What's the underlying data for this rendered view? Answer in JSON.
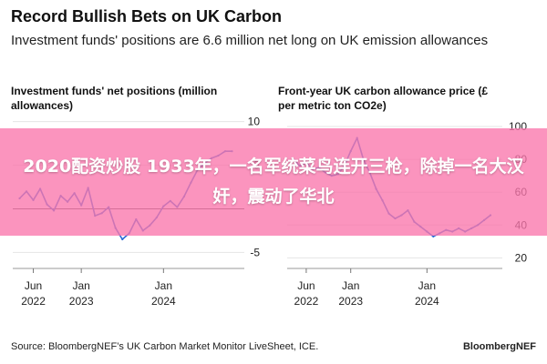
{
  "header": {
    "title": "Record Bullish Bets on UK Carbon",
    "subtitle": "Investment funds' positions are 6.6 million net long on UK emission allowances"
  },
  "footer": {
    "source": "Source: BloombergNEF’s UK Carbon Market Monitor LiveSheet, ICE.",
    "brand": "BloombergNEF"
  },
  "overlay": {
    "text": "2020配资炒股 1933年，一名军统菜鸟连开三枪，除掉一名大汉奸，震动了华北"
  },
  "colors": {
    "line": "#2b6cd6",
    "zero_line": "#555555",
    "grid": "#e4e4e4",
    "overlay": "#fa76ac"
  },
  "chart_data": [
    {
      "type": "line",
      "title": "Investment funds' net positions (million allowances)",
      "xlabel": "",
      "ylabel": "",
      "x_ticks": [
        {
          "line1": "Jun",
          "line2": "2022",
          "x": "2022-06"
        },
        {
          "line1": "Jan",
          "line2": "2023",
          "x": "2023-01"
        },
        {
          "line1": "Jan",
          "line2": "2024",
          "x": "2024-01"
        }
      ],
      "yticks": [
        10,
        5,
        -5
      ],
      "ylim": [
        -6,
        11
      ],
      "xlim": [
        "2022-03",
        "2024-12"
      ],
      "zero_line": true,
      "series": [
        {
          "x": [
            "2022-04",
            "2022-05",
            "2022-06",
            "2022-07",
            "2022-08",
            "2022-09",
            "2022-10",
            "2022-11",
            "2022-12",
            "2023-01",
            "2023-02",
            "2023-03",
            "2023-04",
            "2023-05",
            "2023-06",
            "2023-07",
            "2023-08",
            "2023-09",
            "2023-10",
            "2023-11",
            "2023-12",
            "2024-01",
            "2024-02",
            "2024-03",
            "2024-04",
            "2024-05",
            "2024-06",
            "2024-07",
            "2024-08",
            "2024-09",
            "2024-10",
            "2024-11"
          ],
          "y": [
            1.2,
            2.0,
            1.0,
            2.3,
            0.5,
            -0.2,
            1.5,
            0.8,
            1.8,
            0.4,
            2.4,
            -0.8,
            -0.5,
            0.2,
            -2.2,
            -3.5,
            -2.8,
            -1.2,
            -2.5,
            -1.9,
            -1.0,
            0.3,
            0.9,
            0.2,
            1.4,
            3.0,
            4.5,
            5.2,
            5.8,
            6.1,
            6.6,
            6.6
          ]
        }
      ]
    },
    {
      "type": "line",
      "title": "Front-year UK carbon allowance price (£ per metric ton CO2e)",
      "xlabel": "",
      "ylabel": "",
      "x_ticks": [
        {
          "line1": "Jun",
          "line2": "2022",
          "x": "2022-06"
        },
        {
          "line1": "Jan",
          "line2": "2023",
          "x": "2023-01"
        },
        {
          "line1": "Jan",
          "line2": "2024",
          "x": "2024-01"
        }
      ],
      "yticks": [
        100,
        80,
        60,
        40,
        20
      ],
      "ylim": [
        18,
        105
      ],
      "xlim": [
        "2022-03",
        "2024-12"
      ],
      "zero_line": false,
      "series": [
        {
          "x": [
            "2022-04",
            "2022-05",
            "2022-06",
            "2022-07",
            "2022-08",
            "2022-09",
            "2022-10",
            "2022-11",
            "2022-12",
            "2023-01",
            "2023-02",
            "2023-03",
            "2023-04",
            "2023-05",
            "2023-06",
            "2023-07",
            "2023-08",
            "2023-09",
            "2023-10",
            "2023-11",
            "2023-12",
            "2024-01",
            "2024-02",
            "2024-03",
            "2024-04",
            "2024-05",
            "2024-06",
            "2024-07",
            "2024-08",
            "2024-09",
            "2024-10",
            "2024-11"
          ],
          "y": [
            80,
            76,
            78,
            74,
            75,
            72,
            70,
            71,
            76,
            85,
            93,
            80,
            72,
            62,
            55,
            47,
            44,
            46,
            49,
            42,
            39,
            36,
            33,
            35,
            37,
            36,
            38,
            36,
            38,
            40,
            43,
            46
          ]
        }
      ]
    }
  ]
}
